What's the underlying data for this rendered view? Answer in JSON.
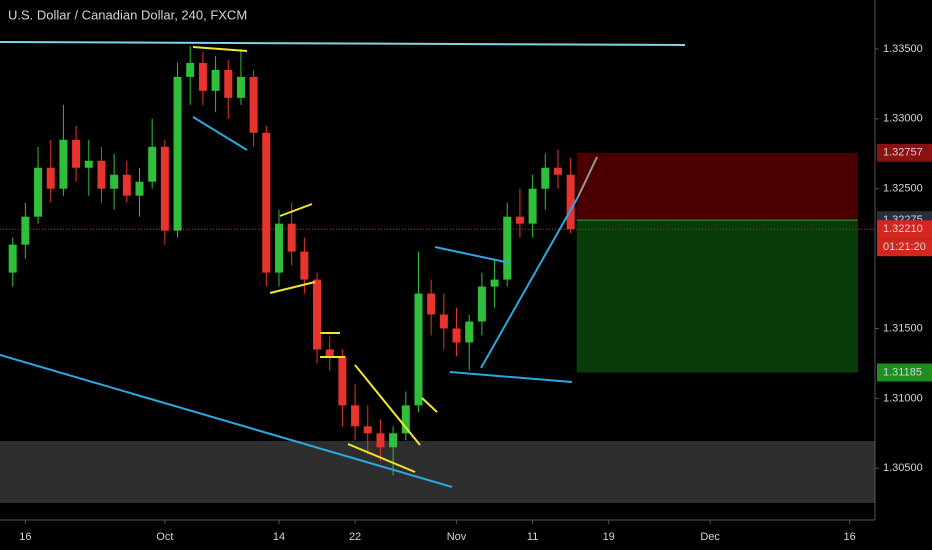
{
  "chart_data": {
    "type": "candlestick",
    "title": "U.S. Dollar / Canadian Dollar, 240, FXCM",
    "x": [
      -1,
      0,
      1,
      2,
      3,
      4,
      5,
      6,
      7,
      8,
      9,
      10,
      11,
      12,
      13,
      14,
      15,
      16,
      17,
      18,
      19,
      20,
      21,
      22,
      23,
      24,
      25,
      26,
      27,
      28,
      29,
      30,
      31,
      32,
      33,
      34,
      35,
      36,
      37,
      38,
      39,
      40,
      41,
      42,
      43
    ],
    "open": [
      1.319,
      1.321,
      1.323,
      1.3265,
      1.325,
      1.3285,
      1.3265,
      1.327,
      1.325,
      1.326,
      1.3245,
      1.3255,
      1.328,
      1.322,
      1.333,
      1.334,
      1.332,
      1.3335,
      1.3315,
      1.333,
      1.329,
      1.319,
      1.3225,
      1.3205,
      1.3185,
      1.3135,
      1.313,
      1.3095,
      1.308,
      1.3075,
      1.3065,
      1.3075,
      1.3095,
      1.3175,
      1.316,
      1.315,
      1.314,
      1.3155,
      1.318,
      1.3185,
      1.323,
      1.3225,
      1.325,
      1.3265,
      1.326
    ],
    "high": [
      1.3215,
      1.324,
      1.328,
      1.3285,
      1.331,
      1.3295,
      1.3285,
      1.328,
      1.3275,
      1.327,
      1.3265,
      1.33,
      1.3285,
      1.334,
      1.3352,
      1.3348,
      1.3345,
      1.3342,
      1.335,
      1.3335,
      1.3295,
      1.3235,
      1.324,
      1.3215,
      1.319,
      1.3145,
      1.3135,
      1.311,
      1.3095,
      1.3085,
      1.308,
      1.3105,
      1.3205,
      1.3185,
      1.3175,
      1.3165,
      1.316,
      1.319,
      1.32,
      1.324,
      1.325,
      1.326,
      1.3275,
      1.3278,
      1.3272
    ],
    "low": [
      1.318,
      1.32,
      1.3225,
      1.324,
      1.3245,
      1.3255,
      1.3245,
      1.324,
      1.3235,
      1.324,
      1.323,
      1.325,
      1.321,
      1.3215,
      1.331,
      1.331,
      1.3305,
      1.33,
      1.331,
      1.328,
      1.318,
      1.318,
      1.3195,
      1.3175,
      1.3125,
      1.312,
      1.308,
      1.307,
      1.306,
      1.3055,
      1.3045,
      1.307,
      1.309,
      1.3145,
      1.3135,
      1.313,
      1.312,
      1.3145,
      1.3165,
      1.318,
      1.3215,
      1.3215,
      1.3235,
      1.325,
      1.3218
    ],
    "close": [
      1.321,
      1.323,
      1.3265,
      1.325,
      1.3285,
      1.3265,
      1.327,
      1.325,
      1.326,
      1.3245,
      1.3255,
      1.328,
      1.322,
      1.333,
      1.334,
      1.332,
      1.3335,
      1.3315,
      1.333,
      1.329,
      1.319,
      1.3225,
      1.3205,
      1.3185,
      1.3135,
      1.313,
      1.3095,
      1.308,
      1.3075,
      1.3065,
      1.3075,
      1.3095,
      1.3175,
      1.316,
      1.315,
      1.314,
      1.3155,
      1.318,
      1.3185,
      1.323,
      1.3225,
      1.325,
      1.3265,
      1.326,
      1.3221
    ],
    "up_color": "#2fbf3a",
    "down_color": "#e8342e",
    "xlim": [
      -2,
      67
    ],
    "xticks": [
      {
        "value": 0,
        "label": "16"
      },
      {
        "value": 11,
        "label": "Oct"
      },
      {
        "value": 20,
        "label": "14"
      },
      {
        "value": 26,
        "label": "22"
      },
      {
        "value": 34,
        "label": "Nov"
      },
      {
        "value": 40,
        "label": "11"
      },
      {
        "value": 46,
        "label": "19"
      },
      {
        "value": 54,
        "label": "Dec"
      },
      {
        "value": 65,
        "label": "16"
      }
    ],
    "ylim": [
      1.3013,
      1.3385
    ],
    "yticks": [
      {
        "value": 1.305,
        "label": "1.30500"
      },
      {
        "value": 1.31,
        "label": "1.31000"
      },
      {
        "value": 1.315,
        "label": "1.31500"
      },
      {
        "value": 1.325,
        "label": "1.32500"
      },
      {
        "value": 1.33,
        "label": "1.33000"
      },
      {
        "value": 1.335,
        "label": "1.33500"
      }
    ],
    "price_labels": [
      {
        "value": 1.32757,
        "label": "1.32757",
        "color": "#8b1010"
      },
      {
        "value": 1.32275,
        "label": "1.32275",
        "color": "#2a2e39"
      },
      {
        "value": 1.3221,
        "label": "1.32210",
        "color": "#d3261f"
      },
      {
        "value": 1.31185,
        "label": "1.31185",
        "color": "#1e8f1e"
      }
    ],
    "countdown": "01:21:20"
  }
}
